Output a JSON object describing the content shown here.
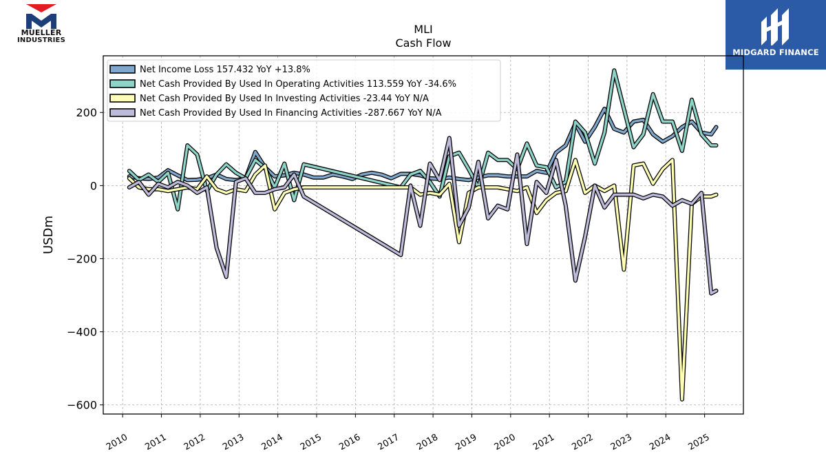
{
  "branding": {
    "left_logo_line1": "MUELLER",
    "left_logo_line2": "INDUSTRIES",
    "right_logo_text": "MIDGARD FINANCE",
    "left_logo_red": "#e31b23",
    "left_logo_navy": "#1c3f7a",
    "right_logo_bg": "#2b5aa6"
  },
  "chart_data": {
    "type": "line",
    "title": "MLI",
    "subtitle": "Cash Flow",
    "ylabel": "USDm",
    "xlabel": "",
    "xlim": [
      2009.5,
      2026.0
    ],
    "ylim": [
      -625,
      355
    ],
    "yticks": [
      -600,
      -400,
      -200,
      0,
      200
    ],
    "ytick_labels": [
      "−600",
      "−400",
      "−200",
      "0",
      "200"
    ],
    "xticks": [
      2010,
      2011,
      2012,
      2013,
      2014,
      2015,
      2016,
      2017,
      2018,
      2019,
      2020,
      2021,
      2022,
      2023,
      2024,
      2025
    ],
    "xtick_labels": [
      "2010",
      "2011",
      "2012",
      "2013",
      "2014",
      "2015",
      "2016",
      "2017",
      "2018",
      "2019",
      "2020",
      "2021",
      "2022",
      "2023",
      "2024",
      "2025"
    ],
    "grid": true,
    "legend_position": "top-left",
    "series": [
      {
        "name": "Net Income Loss",
        "legend": "Net Income Loss  157.432 YoY +13.8%",
        "color": "#7fa8cc",
        "x": [
          2010.17,
          2010.42,
          2010.67,
          2010.92,
          2011.17,
          2011.42,
          2011.67,
          2011.92,
          2012.17,
          2012.42,
          2012.67,
          2012.92,
          2013.17,
          2013.42,
          2013.67,
          2013.92,
          2014.17,
          2014.42,
          2014.67,
          2014.92,
          2015.17,
          2015.42,
          2015.67,
          2015.92,
          2016.17,
          2016.42,
          2016.67,
          2016.92,
          2017.17,
          2017.42,
          2017.67,
          2017.92,
          2018.17,
          2018.42,
          2018.67,
          2018.92,
          2019.17,
          2019.42,
          2019.67,
          2019.92,
          2020.17,
          2020.42,
          2020.67,
          2020.92,
          2021.17,
          2021.42,
          2021.67,
          2021.92,
          2022.17,
          2022.42,
          2022.67,
          2022.92,
          2023.17,
          2023.42,
          2023.67,
          2023.92,
          2024.17,
          2024.42,
          2024.67,
          2024.92,
          2025.17,
          2025.3
        ],
        "values": [
          25,
          20,
          18,
          22,
          42,
          28,
          15,
          16,
          20,
          30,
          18,
          15,
          20,
          92,
          50,
          25,
          28,
          35,
          30,
          22,
          22,
          30,
          25,
          18,
          30,
          35,
          30,
          20,
          32,
          32,
          28,
          20,
          18,
          22,
          18,
          15,
          22,
          28,
          28,
          25,
          25,
          25,
          40,
          35,
          90,
          110,
          170,
          120,
          160,
          210,
          155,
          145,
          175,
          180,
          140,
          120,
          135,
          160,
          175,
          145,
          140,
          160
        ]
      },
      {
        "name": "Net Cash Provided By Used In Operating Activities",
        "legend": "Net Cash Provided By Used In Operating Activities  113.559 YoY -34.6%",
        "color": "#8dd3c7",
        "x": [
          2010.17,
          2010.42,
          2010.67,
          2010.92,
          2011.17,
          2011.42,
          2011.67,
          2011.92,
          2012.17,
          2012.42,
          2012.67,
          2012.92,
          2013.17,
          2013.42,
          2013.67,
          2013.92,
          2014.17,
          2014.42,
          2014.67,
          2017.17,
          2017.42,
          2017.67,
          2017.92,
          2018.17,
          2018.42,
          2018.67,
          2018.92,
          2019.17,
          2019.42,
          2019.67,
          2019.92,
          2020.17,
          2020.42,
          2020.67,
          2020.92,
          2021.17,
          2021.42,
          2021.67,
          2021.92,
          2022.17,
          2022.42,
          2022.67,
          2022.92,
          2023.17,
          2023.42,
          2023.67,
          2023.92,
          2024.17,
          2024.42,
          2024.67,
          2024.92,
          2025.17,
          2025.3
        ],
        "values": [
          40,
          15,
          30,
          10,
          35,
          -65,
          110,
          85,
          -15,
          30,
          58,
          35,
          20,
          70,
          48,
          -5,
          60,
          -40,
          58,
          -5,
          30,
          40,
          10,
          -30,
          80,
          90,
          45,
          -5,
          90,
          70,
          70,
          45,
          115,
          55,
          50,
          -5,
          10,
          175,
          145,
          60,
          145,
          315,
          210,
          105,
          140,
          250,
          175,
          175,
          95,
          235,
          140,
          110,
          110
        ]
      },
      {
        "name": "Net Cash Provided By Used In Investing Activities",
        "legend": "Net Cash Provided By Used In Investing Activities  -23.44 YoY N/A",
        "color": "#ffffb3",
        "x": [
          2010.17,
          2010.42,
          2010.67,
          2010.92,
          2011.17,
          2011.42,
          2011.67,
          2011.92,
          2012.17,
          2012.42,
          2012.67,
          2012.92,
          2013.17,
          2013.42,
          2013.67,
          2013.92,
          2014.17,
          2014.42,
          2014.67,
          2017.17,
          2017.42,
          2017.67,
          2017.92,
          2018.17,
          2018.42,
          2018.67,
          2018.92,
          2019.17,
          2019.42,
          2019.67,
          2019.92,
          2020.17,
          2020.42,
          2020.67,
          2020.92,
          2021.17,
          2021.42,
          2021.67,
          2021.92,
          2022.17,
          2022.42,
          2022.67,
          2022.92,
          2023.17,
          2023.42,
          2023.67,
          2023.92,
          2024.17,
          2024.42,
          2024.67,
          2024.92,
          2025.17,
          2025.3
        ],
        "values": [
          20,
          -5,
          -10,
          -10,
          -15,
          -10,
          -5,
          -10,
          25,
          -10,
          -20,
          -10,
          -15,
          30,
          55,
          -65,
          -20,
          -10,
          -5,
          -5,
          -5,
          -25,
          -20,
          -25,
          5,
          -155,
          -20,
          -5,
          -5,
          -5,
          -10,
          -15,
          -5,
          -75,
          -40,
          -20,
          -15,
          70,
          -20,
          0,
          -15,
          0,
          -230,
          55,
          60,
          5,
          45,
          70,
          -585,
          -50,
          -30,
          -30,
          -25
        ]
      },
      {
        "name": "Net Cash Provided By Used In Financing Activities",
        "legend": "Net Cash Provided By Used In Financing Activities  -287.667 YoY N/A",
        "color": "#bebada",
        "x": [
          2010.17,
          2010.42,
          2010.67,
          2010.92,
          2011.17,
          2011.42,
          2011.67,
          2011.92,
          2012.17,
          2012.42,
          2012.67,
          2012.92,
          2013.17,
          2013.42,
          2013.67,
          2013.92,
          2014.17,
          2014.42,
          2014.67,
          2017.17,
          2017.42,
          2017.67,
          2017.92,
          2018.17,
          2018.42,
          2018.67,
          2018.92,
          2019.17,
          2019.42,
          2019.67,
          2019.92,
          2020.17,
          2020.42,
          2020.67,
          2020.92,
          2021.17,
          2021.42,
          2021.67,
          2021.92,
          2022.17,
          2022.42,
          2022.67,
          2022.92,
          2023.17,
          2023.42,
          2023.67,
          2023.92,
          2024.17,
          2024.42,
          2024.67,
          2024.92,
          2025.17,
          2025.3
        ],
        "values": [
          -5,
          10,
          -25,
          5,
          -5,
          10,
          0,
          -20,
          -5,
          -170,
          -250,
          10,
          20,
          -20,
          -20,
          -10,
          -5,
          30,
          -30,
          -190,
          0,
          -110,
          60,
          15,
          130,
          -110,
          -60,
          65,
          -90,
          -55,
          -65,
          85,
          -160,
          10,
          -20,
          70,
          -55,
          -260,
          -140,
          0,
          -60,
          -25,
          -25,
          -25,
          -35,
          -25,
          -30,
          -55,
          -40,
          -50,
          -20,
          -295,
          -287.7
        ]
      }
    ]
  }
}
